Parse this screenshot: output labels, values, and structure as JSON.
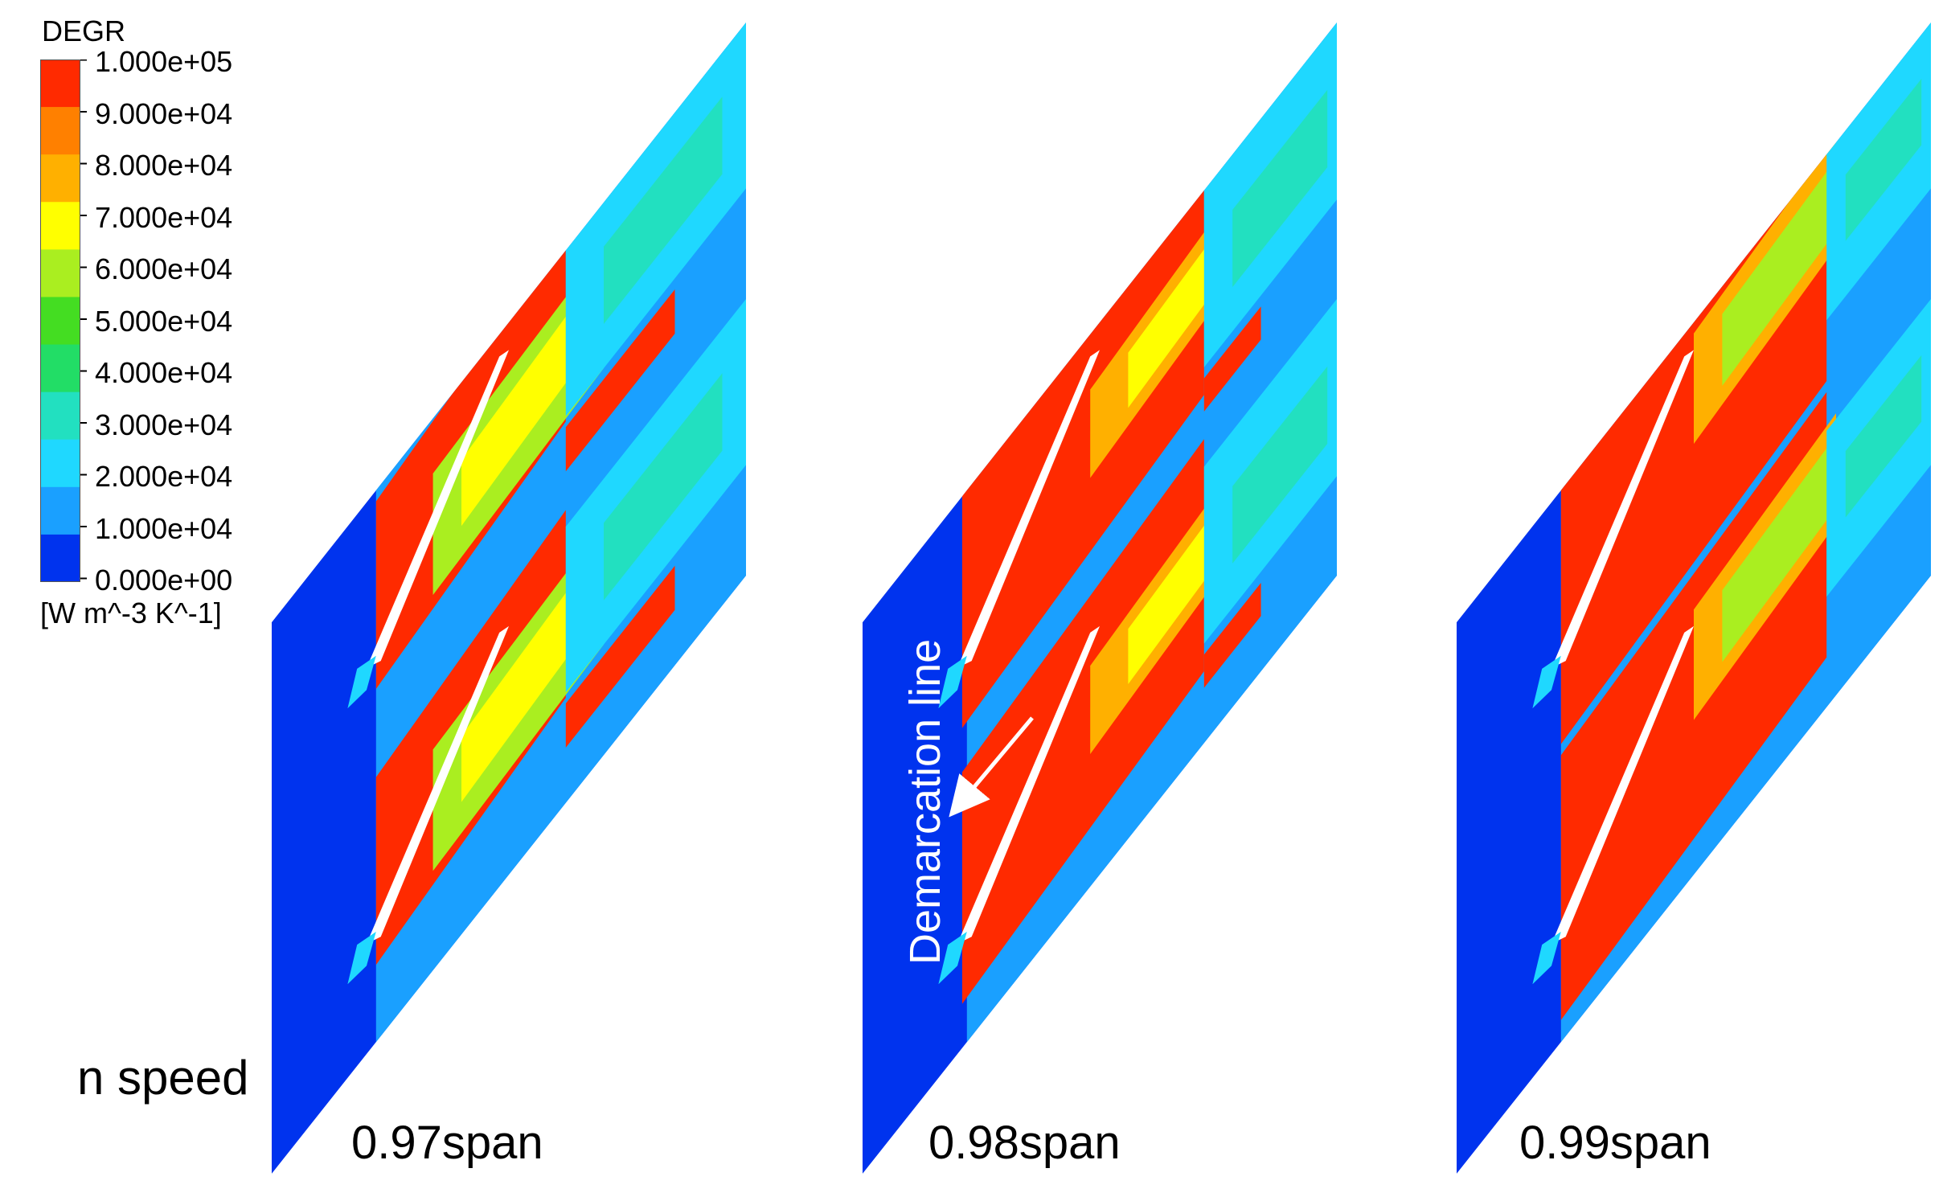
{
  "legend": {
    "title": "DEGR",
    "unit": "[W m^-3 K^-1]",
    "ticks": [
      "1.000e+05",
      "9.000e+04",
      "8.000e+04",
      "7.000e+04",
      "6.000e+04",
      "5.000e+04",
      "4.000e+04",
      "3.000e+04",
      "2.000e+04",
      "1.000e+04",
      "0.000e+00"
    ],
    "colors": [
      "#ff2a00",
      "#ff8000",
      "#ffb000",
      "#ffff00",
      "#aaee20",
      "#44dd22",
      "#22dd66",
      "#22e0c0",
      "#1fd8ff",
      "#1aa0ff",
      "#0033ee"
    ]
  },
  "row_label": "n speed",
  "panels": [
    {
      "id": "span-097",
      "label": "0.97span"
    },
    {
      "id": "span-098",
      "label": "0.98span"
    },
    {
      "id": "span-099",
      "label": "0.99span"
    }
  ],
  "annotation": {
    "text": "Demarcation line"
  },
  "colors": {
    "low": "#0033ee",
    "light_blue": "#1aa0ff",
    "cyan": "#1fd8ff",
    "teal": "#22e0c0",
    "green": "#44dd22",
    "yellow_green": "#aaee20",
    "yellow": "#ffff00",
    "orange": "#ffb000",
    "high": "#ff2a00",
    "blade": "#ffffff"
  }
}
